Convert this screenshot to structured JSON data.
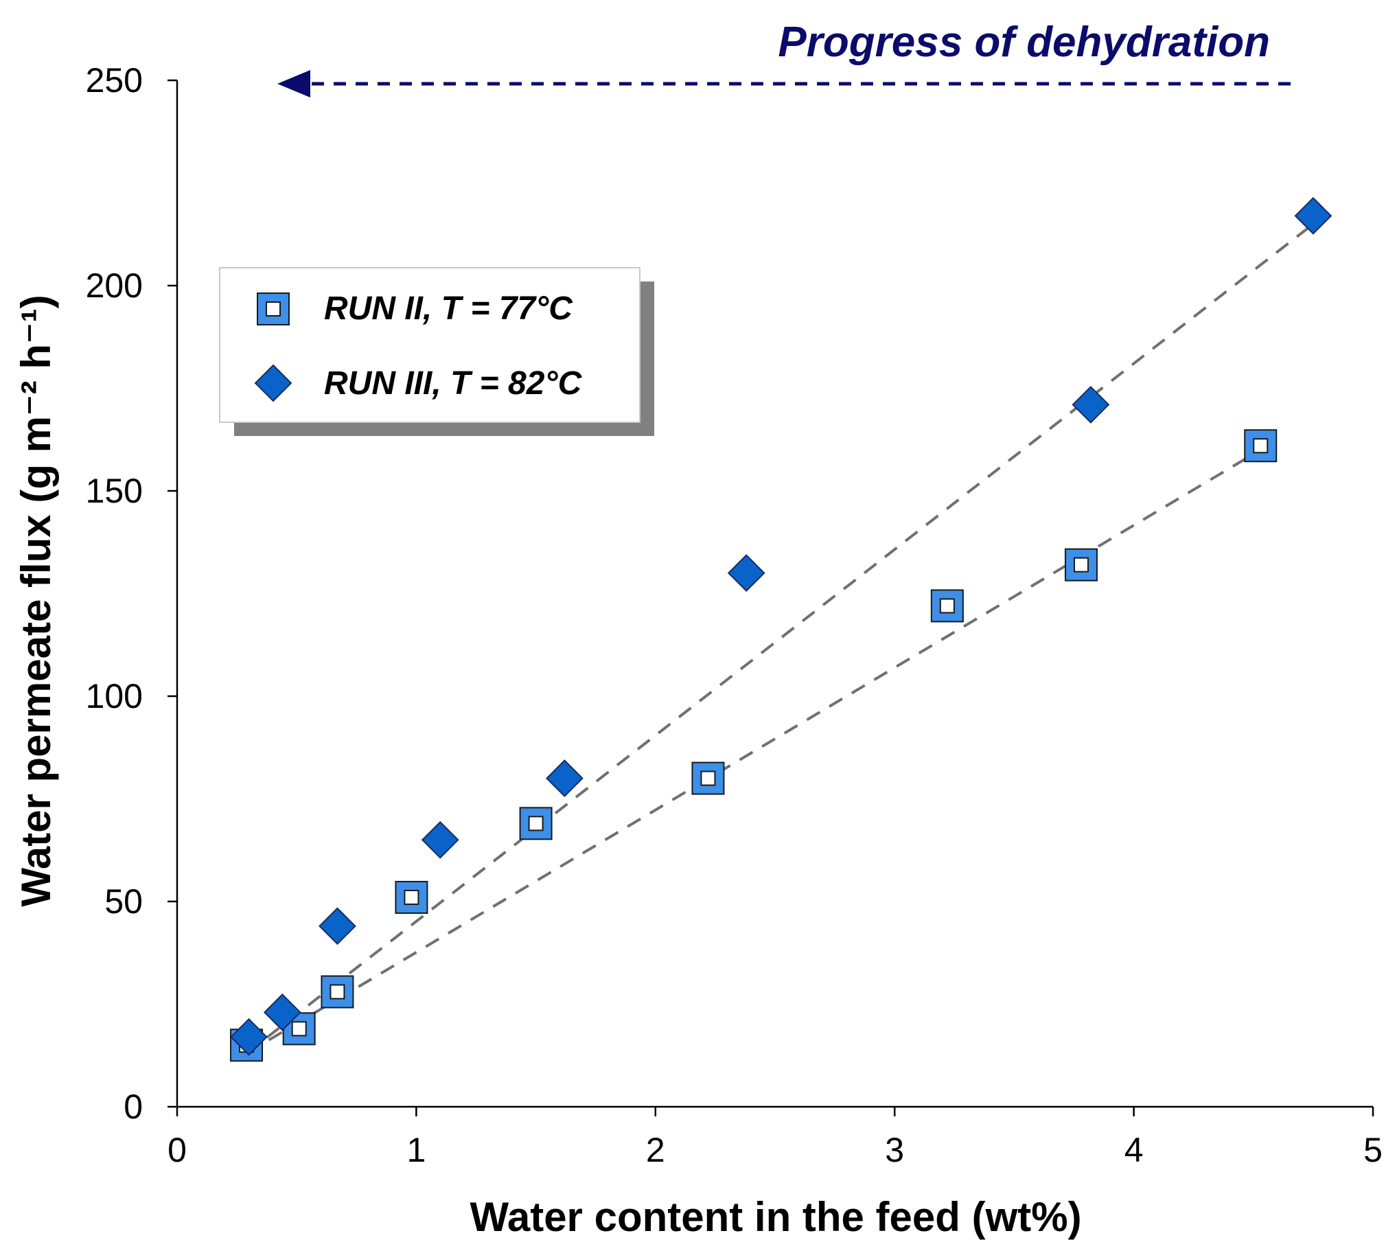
{
  "chart_data": {
    "type": "scatter",
    "title": "",
    "annotation": "Progress of dehydration",
    "xlabel": "Water content in the feed (wt%)",
    "ylabel": "Water permeate flux (g m⁻² h⁻¹)",
    "xlim": [
      0,
      5
    ],
    "ylim": [
      0,
      250
    ],
    "xticks": [
      0,
      1,
      2,
      3,
      4,
      5
    ],
    "yticks": [
      0,
      50,
      100,
      150,
      200,
      250
    ],
    "grid": false,
    "legend_position": "upper-left",
    "series": [
      {
        "name": "RUN II, T = 77°C",
        "marker": "square-open",
        "color": "#3d8fe8",
        "x": [
          0.29,
          0.51,
          0.67,
          0.98,
          1.5,
          2.22,
          3.22,
          3.78,
          4.53
        ],
        "y": [
          15,
          19,
          28,
          51,
          69,
          80,
          122,
          132,
          161
        ],
        "trend": {
          "x": [
            0.29,
            4.53
          ],
          "y": [
            13,
            160
          ]
        }
      },
      {
        "name": "RUN III, T = 82°C",
        "marker": "diamond-filled",
        "color": "#0a63c9",
        "x": [
          0.3,
          0.44,
          0.67,
          1.1,
          1.62,
          2.38,
          3.82,
          4.75
        ],
        "y": [
          17,
          23,
          44,
          65,
          80,
          130,
          171,
          217
        ],
        "trend": {
          "x": [
            0.29,
            4.75
          ],
          "y": [
            13,
            215
          ]
        }
      }
    ]
  },
  "colors": {
    "annotation": "#0b0b6b",
    "trendline": "#707070",
    "legend_shadow": "#808080",
    "axis": "#000000"
  }
}
